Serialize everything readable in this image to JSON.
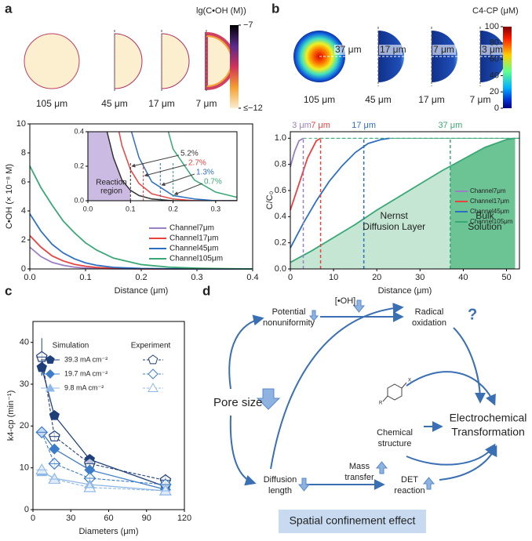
{
  "chart_data": [
    {
      "type": "line",
      "panel": "a",
      "images": {
        "labels": [
          "105 μm",
          "45 μm",
          "17 μm",
          "7 μm"
        ]
      },
      "colorbar": {
        "title": "lg(C•OH (M))",
        "lim": [
          -12,
          -7
        ],
        "ticks": [
          {
            "value": -7,
            "label": "−7"
          },
          {
            "value": -12,
            "label": "≤−12"
          }
        ]
      },
      "xlabel": "Distance (μm)",
      "ylabel": "C•OH (× 10⁻⁸ M)",
      "xlim": [
        0,
        0.4
      ],
      "xticks": [
        {
          "value": 0,
          "label": "0.0"
        },
        0.1,
        0.2,
        0.3,
        0.4
      ],
      "ylim": [
        0,
        10
      ],
      "yticks": [
        0,
        2,
        4,
        6,
        8,
        10
      ],
      "x": [
        0,
        0.02,
        0.04,
        0.06,
        0.08,
        0.1,
        0.12,
        0.15,
        0.2,
        0.25,
        0.3,
        0.35,
        0.4
      ],
      "series": [
        {
          "name": "Channel7μm",
          "color": "#9b7fc4",
          "values": [
            1.5,
            0.85,
            0.45,
            0.25,
            0.12,
            0.06,
            0.03,
            0.01,
            0,
            0,
            0,
            0,
            0
          ]
        },
        {
          "name": "Channel17μm",
          "color": "#e8423f",
          "values": [
            2.3,
            1.5,
            0.9,
            0.55,
            0.32,
            0.18,
            0.1,
            0.04,
            0.01,
            0,
            0,
            0,
            0
          ]
        },
        {
          "name": "Channel45μm",
          "color": "#2f6fbf",
          "values": [
            3.8,
            2.6,
            1.7,
            1.1,
            0.7,
            0.42,
            0.25,
            0.11,
            0.03,
            0.01,
            0,
            0,
            0
          ]
        },
        {
          "name": "Channel105μm",
          "color": "#3aa876",
          "values": [
            7.1,
            5.6,
            4.4,
            3.3,
            2.5,
            1.8,
            1.3,
            0.75,
            0.3,
            0.12,
            0.05,
            0.02,
            0
          ]
        }
      ],
      "inset": {
        "xlim": [
          0,
          0.35
        ],
        "xticks": [
          {
            "value": 0,
            "label": "0.0"
          },
          0.1,
          0.2,
          0.3
        ],
        "ylim": [
          0,
          0.4
        ],
        "yticks": [
          {
            "value": 0,
            "label": "0.0"
          },
          0.2,
          0.4
        ],
        "cutoffs": [
          0.1,
          0.13,
          0.17,
          0.2
        ],
        "percent_labels": [
          "5.2%",
          "2.7%",
          "1.3%",
          "0.7%"
        ],
        "region_label": [
          "Reaction",
          "region"
        ]
      }
    },
    {
      "type": "line",
      "panel": "b",
      "images": {
        "labels": [
          "105 μm",
          "45 μm",
          "17 μm",
          "7 μm"
        ],
        "inner_labels": [
          "37 μm",
          "17 μm",
          "7 μm",
          "3 μm"
        ]
      },
      "colorbar": {
        "title": "C4-CP (μM)",
        "lim": [
          0,
          100
        ],
        "ticks": [
          0,
          20,
          40,
          60,
          80,
          100
        ]
      },
      "xlabel": "Distance (μm)",
      "ylabel": "C/C₀",
      "xlim": [
        0,
        53
      ],
      "xticks": [
        0,
        10,
        20,
        30,
        40,
        50
      ],
      "ylim": [
        0,
        1.05
      ],
      "yticks": [
        {
          "value": 0,
          "label": "0.0"
        },
        0.2,
        0.4,
        0.6,
        0.8,
        {
          "value": 1,
          "label": "1.0"
        }
      ],
      "vlines": [
        {
          "value": 3,
          "label": "3 μm"
        },
        {
          "value": 7,
          "label": "7 μm"
        },
        {
          "value": 17,
          "label": "17 μm"
        },
        {
          "value": 37,
          "label": "37 μm"
        }
      ],
      "region_labels": [
        [
          "Nernst",
          "Diffusion Layer"
        ],
        [
          "Bulk",
          "Solution"
        ]
      ],
      "series": [
        {
          "name": "Channel7μm",
          "color": "#9b7fc4",
          "x": [
            0,
            1,
            2,
            3
          ],
          "values": [
            0.78,
            0.9,
            0.98,
            1
          ]
        },
        {
          "name": "Channel17μm",
          "color": "#e8423f",
          "x": [
            0,
            2,
            4,
            6,
            7
          ],
          "values": [
            0.45,
            0.65,
            0.85,
            0.98,
            1
          ]
        },
        {
          "name": "Channel45μm",
          "color": "#2f6fbf",
          "x": [
            0,
            3,
            6,
            9,
            12,
            15,
            18,
            21,
            23
          ],
          "values": [
            0.16,
            0.35,
            0.52,
            0.67,
            0.79,
            0.89,
            0.96,
            0.99,
            1
          ]
        },
        {
          "name": "Channel105μm",
          "color": "#3aa876",
          "fill": true,
          "x": [
            0,
            5,
            10,
            15,
            20,
            25,
            30,
            35,
            40,
            45,
            50,
            52
          ],
          "values": [
            0.05,
            0.14,
            0.24,
            0.34,
            0.45,
            0.55,
            0.65,
            0.75,
            0.84,
            0.93,
            0.99,
            1
          ]
        }
      ]
    },
    {
      "type": "scatter",
      "panel": "c",
      "xlabel": "Diameters (μm)",
      "ylabel": "k4-cp (min⁻¹)",
      "xlim": [
        0,
        120
      ],
      "xticks": [
        0,
        30,
        60,
        90,
        120
      ],
      "ylim": [
        0,
        45
      ],
      "yticks": [
        0,
        10,
        20,
        30,
        40
      ],
      "legend_headers": [
        "Simulation",
        "Experiment"
      ],
      "x": [
        7,
        17,
        45,
        105
      ],
      "series": [
        {
          "name": "39.3 mA cm⁻²",
          "color": "#1f3f7a",
          "marker": "pentagon",
          "values": [
            34,
            22.5,
            12,
            5.5
          ],
          "experiment": [
            36.5,
            17.5,
            11,
            7
          ],
          "errors": [
            4.5,
            1,
            1,
            1.5
          ]
        },
        {
          "name": "19.7 mA cm⁻²",
          "color": "#3d7cc9",
          "marker": "diamond",
          "values": [
            18.5,
            14.5,
            9.5,
            4.8
          ],
          "experiment": [
            18.5,
            11,
            7.5,
            6
          ],
          "errors": [
            1,
            1,
            0.8,
            0.8
          ]
        },
        {
          "name": "9.8 mA cm⁻²",
          "color": "#8fb8e6",
          "marker": "triangle",
          "values": [
            9,
            7.5,
            6,
            4.5
          ],
          "experiment": [
            9.5,
            7.3,
            5.3,
            4.5
          ],
          "errors": [
            0.8,
            0.6,
            0.6,
            0.6
          ]
        }
      ]
    }
  ],
  "diagram": {
    "panel": "d",
    "pore_size": "Pore size",
    "potential": [
      "Potential",
      "nonuniformity"
    ],
    "oh": "[•OH]",
    "radical": [
      "Radical",
      "oxidation"
    ],
    "question": "?",
    "chemical": [
      "Chemical",
      "structure"
    ],
    "icon_labels": [
      "R",
      "X"
    ],
    "transformation": [
      "Electrochemical",
      "Transformation"
    ],
    "diffusion": [
      "Diffusion",
      "length"
    ],
    "mass": [
      "Mass",
      "transfer"
    ],
    "det": [
      "DET",
      "reaction"
    ],
    "effect": "Spatial confinement effect"
  }
}
